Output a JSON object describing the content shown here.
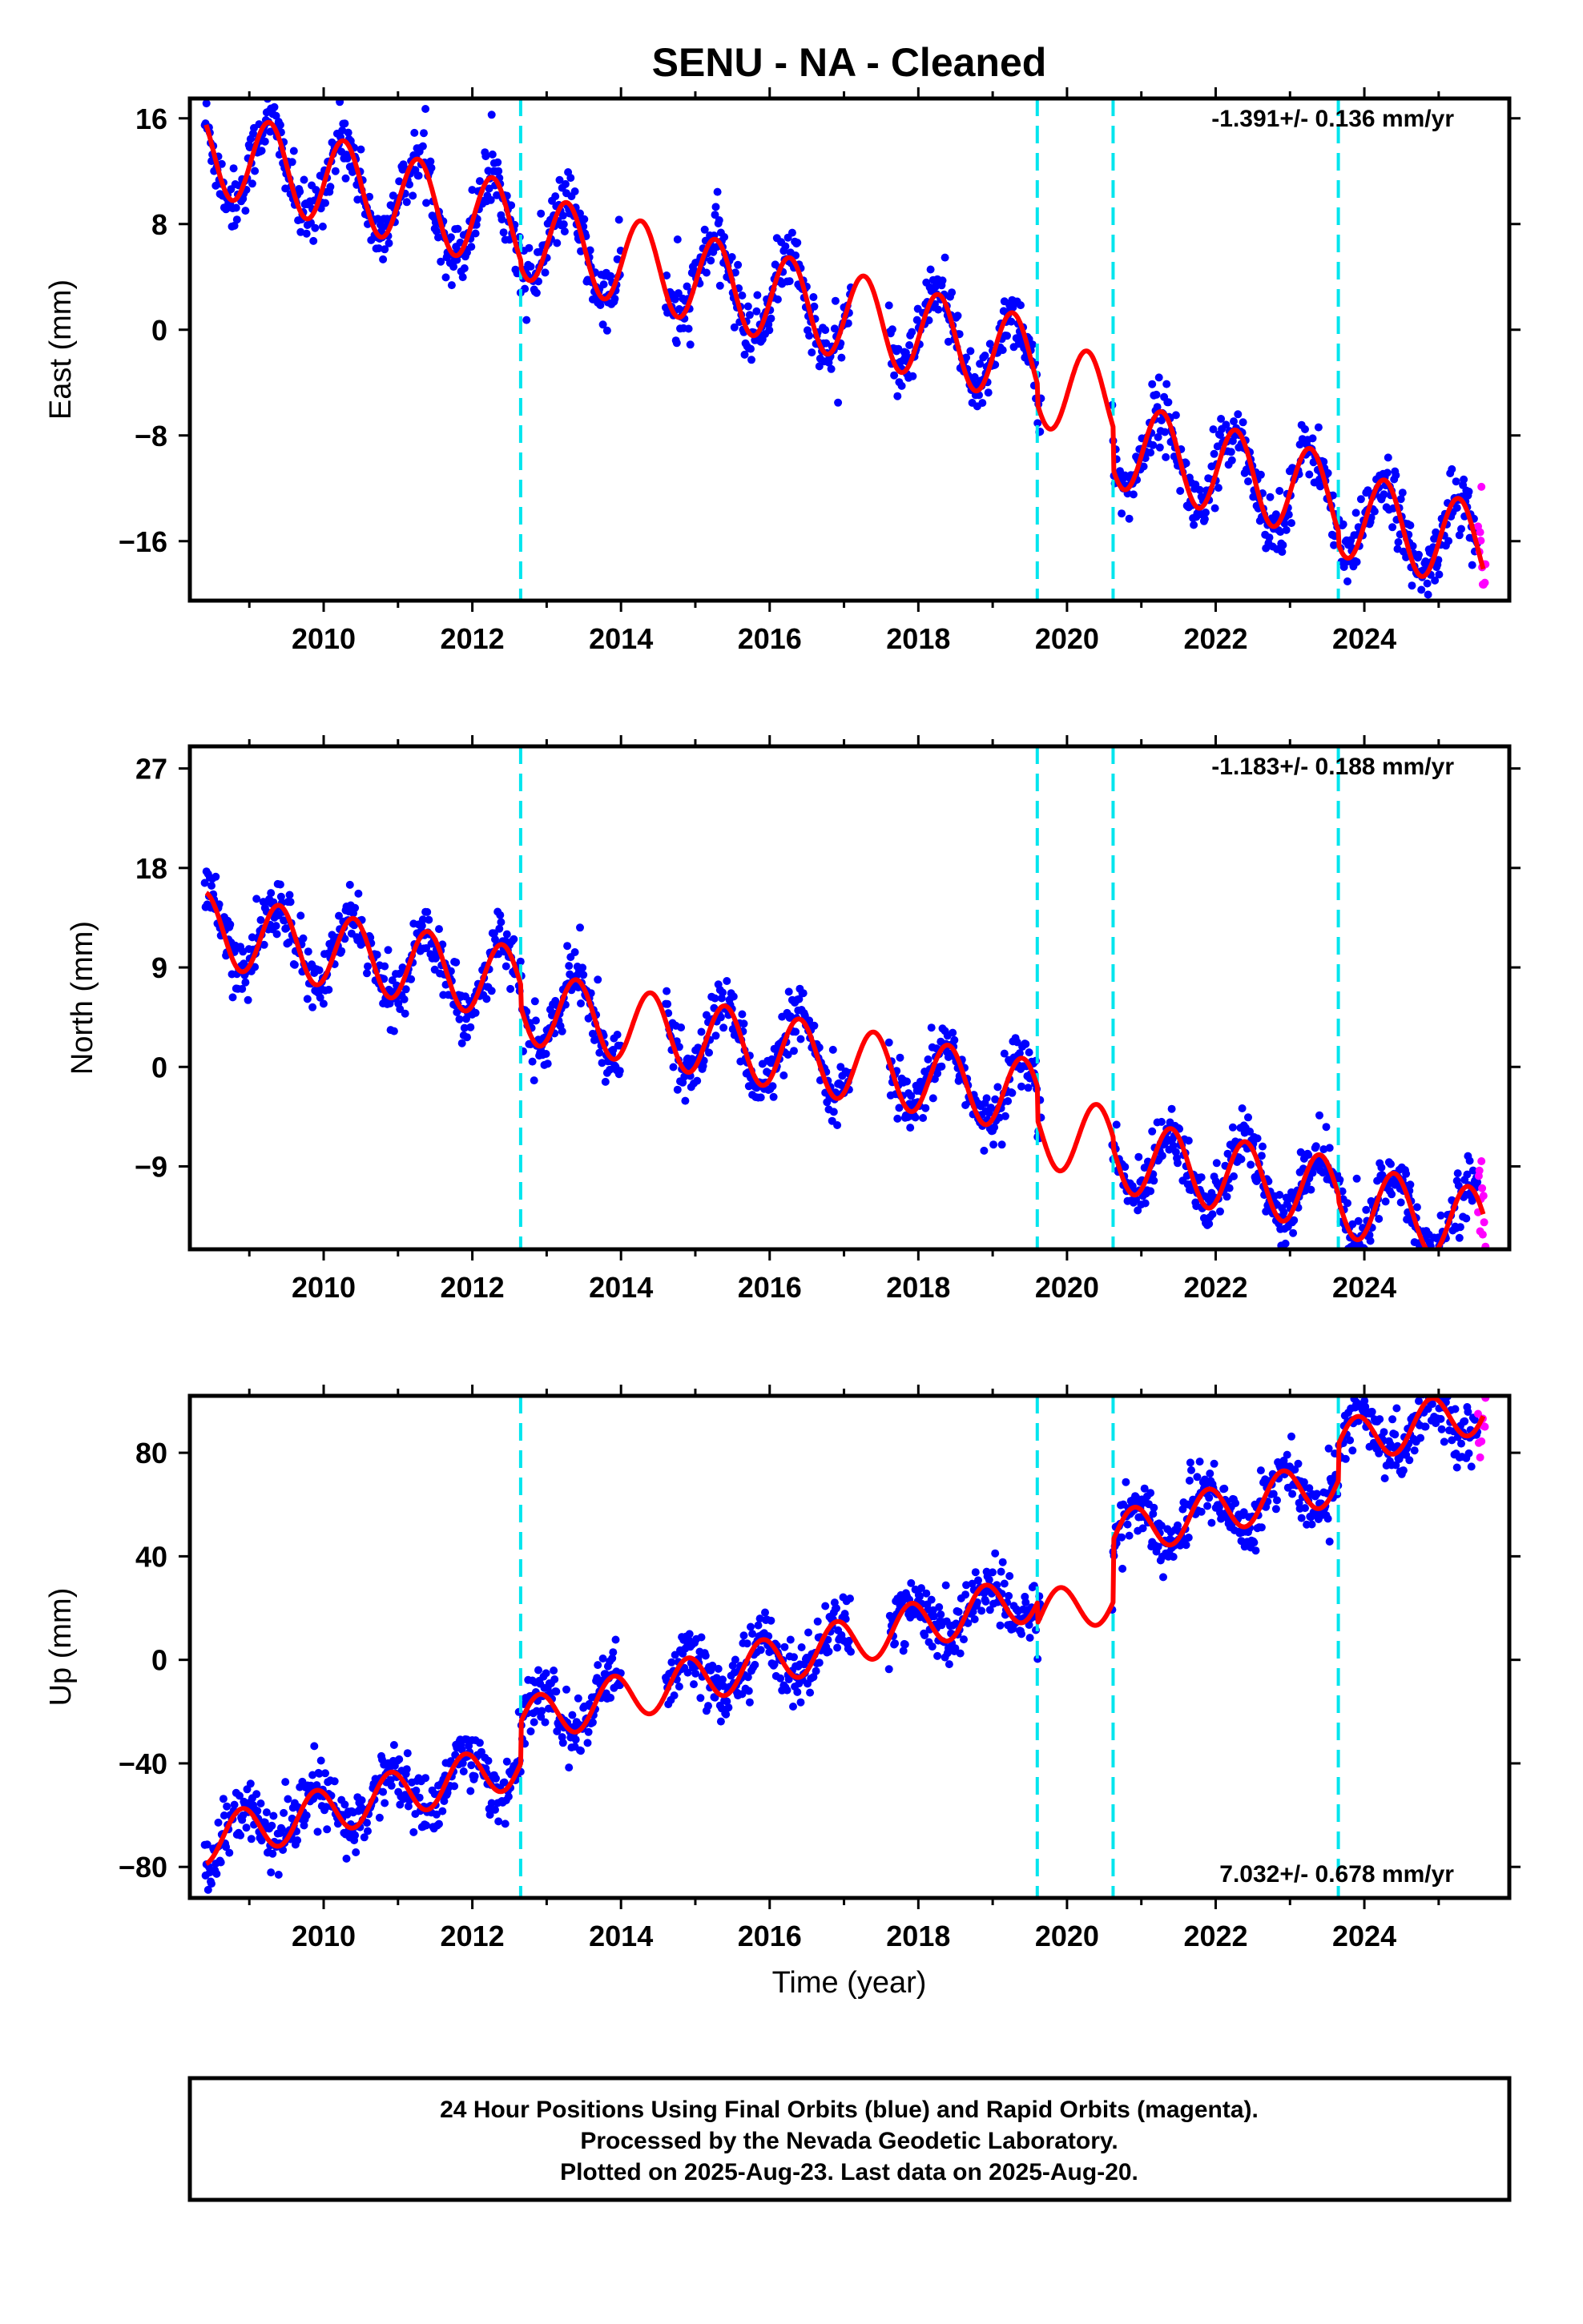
{
  "title": "SENU  - NA - Cleaned",
  "xlabel": "Time (year)",
  "footer_lines": [
    "24 Hour Positions Using Final Orbits (blue) and Rapid Orbits (magenta).",
    "Processed by the Nevada Geodetic Laboratory.",
    "Plotted on 2025-Aug-23. Last data on 2025-Aug-20."
  ],
  "colors": {
    "final": "#0000ff",
    "rapid": "#ff00ff",
    "model": "#ff0000",
    "steps": "#00e5ee"
  },
  "chart_data": [
    {
      "type": "scatter",
      "component": "East",
      "ylabel": "East (mm)",
      "rate_text": "-1.391+/- 0.136 mm/yr",
      "xlim": [
        2008.2,
        2025.95
      ],
      "ylim": [
        -20.5,
        17.5
      ],
      "xticks": [
        2010,
        2012,
        2014,
        2016,
        2018,
        2020,
        2022,
        2024
      ],
      "yticks": [
        -16,
        -8,
        0,
        8,
        16
      ],
      "steps": [
        2012.65,
        2019.6,
        2020.62,
        2023.65
      ],
      "model": {
        "a0": 13.6,
        "rate": -1.391,
        "amp": 3.3,
        "phase": 2009.27,
        "offsets": [
          [
            2012.65,
            -0.5
          ],
          [
            2019.6,
            -1.5
          ],
          [
            2020.62,
            -3.2
          ],
          [
            2023.65,
            -1.0
          ]
        ]
      },
      "gaps": [
        [
          2014.0,
          2014.6
        ],
        [
          2017.1,
          2017.6
        ],
        [
          2019.65,
          2020.6
        ]
      ],
      "scatter_sd": 1.2,
      "final_range": [
        2008.4,
        2025.52
      ],
      "rapid_range": [
        2025.53,
        2025.63
      ]
    },
    {
      "type": "scatter",
      "component": "North",
      "ylabel": "North (mm)",
      "rate_text": "-1.183+/- 0.188 mm/yr",
      "xlim": [
        2008.2,
        2025.95
      ],
      "ylim": [
        -16.5,
        29
      ],
      "xticks": [
        2010,
        2012,
        2014,
        2016,
        2018,
        2020,
        2022,
        2024
      ],
      "yticks": [
        -9,
        0,
        9,
        18,
        27
      ],
      "steps": [
        2012.65,
        2019.6,
        2020.62,
        2023.65
      ],
      "model": {
        "a0": 12.5,
        "rate": -1.183,
        "amp": 3.3,
        "phase": 2009.4,
        "offsets": [
          [
            2012.65,
            -2.0
          ],
          [
            2019.6,
            -3.0
          ],
          [
            2020.62,
            -1.0
          ],
          [
            2023.65,
            -0.5
          ]
        ]
      },
      "gaps": [
        [
          2014.0,
          2014.6
        ],
        [
          2017.1,
          2017.6
        ],
        [
          2019.65,
          2020.6
        ]
      ],
      "scatter_sd": 1.3,
      "final_range": [
        2008.4,
        2025.52
      ],
      "rapid_range": [
        2025.53,
        2025.63
      ]
    },
    {
      "type": "scatter",
      "component": "Up",
      "ylabel": "Up (mm)",
      "rate_text": "7.032+/- 0.678 mm/yr",
      "xlim": [
        2008.2,
        2025.95
      ],
      "ylim": [
        -92,
        102
      ],
      "xticks": [
        2010,
        2012,
        2014,
        2016,
        2018,
        2020,
        2022,
        2024
      ],
      "yticks": [
        -80,
        -40,
        0,
        40,
        80
      ],
      "steps": [
        2012.65,
        2019.6,
        2020.62,
        2023.65
      ],
      "model": {
        "a0": -70,
        "rate": 7.032,
        "amp": 9,
        "phase": 2008.9,
        "offsets": [
          [
            2012.65,
            16
          ],
          [
            2019.6,
            -8
          ],
          [
            2020.62,
            24
          ],
          [
            2023.65,
            14
          ]
        ]
      },
      "gaps": [
        [
          2014.0,
          2014.6
        ],
        [
          2017.1,
          2017.6
        ],
        [
          2019.65,
          2020.6
        ]
      ],
      "scatter_sd": 6,
      "final_range": [
        2008.4,
        2025.52
      ],
      "rapid_range": [
        2025.53,
        2025.63
      ]
    }
  ]
}
